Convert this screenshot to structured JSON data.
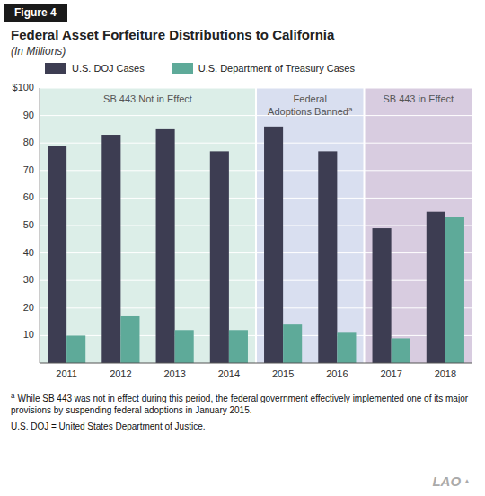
{
  "chart_data": {
    "type": "bar",
    "figure_label": "Figure 4",
    "title": "Federal Asset Forfeiture Distributions to California",
    "subtitle": "(In Millions)",
    "categories": [
      "2011",
      "2012",
      "2013",
      "2014",
      "2015",
      "2016",
      "2017",
      "2018"
    ],
    "series": [
      {
        "name": "U.S. DOJ Cases",
        "color": "#3d3d52",
        "values": [
          79,
          83,
          85,
          77,
          86,
          77,
          49,
          55
        ]
      },
      {
        "name": "U.S. Department of Treasury Cases",
        "color": "#5eaa99",
        "values": [
          10,
          17,
          12,
          12,
          14,
          11,
          9,
          53
        ]
      }
    ],
    "ylim": [
      0,
      100
    ],
    "yticks": [
      10,
      20,
      30,
      40,
      50,
      60,
      70,
      80,
      90,
      {
        "value": 100,
        "label": "$100"
      }
    ],
    "grid": true,
    "legend": "top",
    "regions": [
      {
        "label": [
          "SB 443 Not in Effect"
        ],
        "start": "2011",
        "end": "2014",
        "color": "#dceee8"
      },
      {
        "label": [
          "Federal",
          "Adoptions Banned"
        ],
        "superscript": "a",
        "start": "2015",
        "end": "2016",
        "color": "#d9dff0"
      },
      {
        "label": [
          "SB 443 in Effect"
        ],
        "start": "2017",
        "end": "2018",
        "color": "#d8cce0"
      }
    ],
    "footnotes": [
      {
        "marker": "a",
        "text": "While SB 443 was not in effect during this period, the federal government effectively implemented one of its major provisions by suspending federal adoptions in January 2015."
      },
      {
        "text": "U.S. DOJ = United States Department of Justice."
      }
    ],
    "watermark": [
      "LAO",
      "▲"
    ]
  }
}
